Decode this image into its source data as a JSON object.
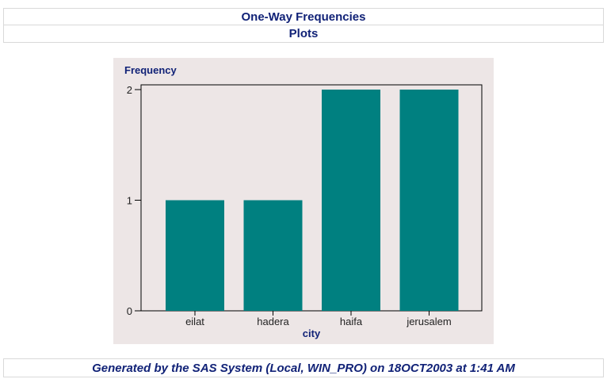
{
  "header": {
    "title": "One-Way Frequencies",
    "subtitle": "Plots"
  },
  "footer": {
    "text": "Generated by the SAS System (Local, WIN_PRO) on 18OCT2003 at 1:41 AM"
  },
  "colors": {
    "bar": "#008080",
    "panel_bg": "#ede6e6",
    "title_text": "#112277"
  },
  "chart_data": {
    "type": "bar",
    "categories": [
      "eilat",
      "hadera",
      "haifa",
      "jerusalem"
    ],
    "values": [
      1,
      1,
      2,
      2
    ],
    "ylabel": "Frequency",
    "xlabel": "city",
    "ylim": [
      0,
      2
    ],
    "yticks": [
      0,
      1,
      2
    ],
    "grid": false
  }
}
